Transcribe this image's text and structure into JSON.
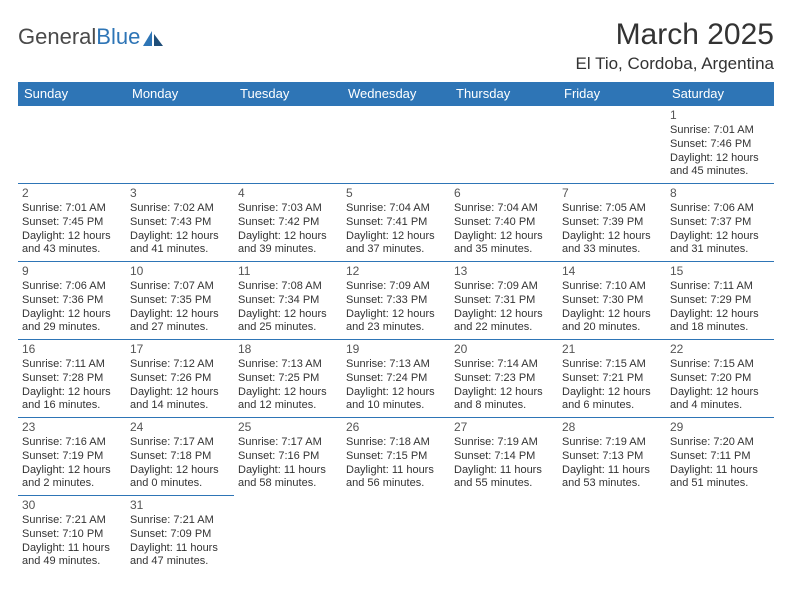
{
  "brand": {
    "part1": "General",
    "part2": "Blue"
  },
  "title": "March 2025",
  "location": "El Tio, Cordoba, Argentina",
  "colors": {
    "header_bg": "#2e75b6",
    "header_text": "#ffffff",
    "cell_border": "#2e75b6",
    "body_text": "#333333"
  },
  "day_headers": [
    "Sunday",
    "Monday",
    "Tuesday",
    "Wednesday",
    "Thursday",
    "Friday",
    "Saturday"
  ],
  "weeks": [
    [
      null,
      null,
      null,
      null,
      null,
      null,
      {
        "n": "1",
        "sr": "Sunrise: 7:01 AM",
        "ss": "Sunset: 7:46 PM",
        "d1": "Daylight: 12 hours",
        "d2": "and 45 minutes."
      }
    ],
    [
      {
        "n": "2",
        "sr": "Sunrise: 7:01 AM",
        "ss": "Sunset: 7:45 PM",
        "d1": "Daylight: 12 hours",
        "d2": "and 43 minutes."
      },
      {
        "n": "3",
        "sr": "Sunrise: 7:02 AM",
        "ss": "Sunset: 7:43 PM",
        "d1": "Daylight: 12 hours",
        "d2": "and 41 minutes."
      },
      {
        "n": "4",
        "sr": "Sunrise: 7:03 AM",
        "ss": "Sunset: 7:42 PM",
        "d1": "Daylight: 12 hours",
        "d2": "and 39 minutes."
      },
      {
        "n": "5",
        "sr": "Sunrise: 7:04 AM",
        "ss": "Sunset: 7:41 PM",
        "d1": "Daylight: 12 hours",
        "d2": "and 37 minutes."
      },
      {
        "n": "6",
        "sr": "Sunrise: 7:04 AM",
        "ss": "Sunset: 7:40 PM",
        "d1": "Daylight: 12 hours",
        "d2": "and 35 minutes."
      },
      {
        "n": "7",
        "sr": "Sunrise: 7:05 AM",
        "ss": "Sunset: 7:39 PM",
        "d1": "Daylight: 12 hours",
        "d2": "and 33 minutes."
      },
      {
        "n": "8",
        "sr": "Sunrise: 7:06 AM",
        "ss": "Sunset: 7:37 PM",
        "d1": "Daylight: 12 hours",
        "d2": "and 31 minutes."
      }
    ],
    [
      {
        "n": "9",
        "sr": "Sunrise: 7:06 AM",
        "ss": "Sunset: 7:36 PM",
        "d1": "Daylight: 12 hours",
        "d2": "and 29 minutes."
      },
      {
        "n": "10",
        "sr": "Sunrise: 7:07 AM",
        "ss": "Sunset: 7:35 PM",
        "d1": "Daylight: 12 hours",
        "d2": "and 27 minutes."
      },
      {
        "n": "11",
        "sr": "Sunrise: 7:08 AM",
        "ss": "Sunset: 7:34 PM",
        "d1": "Daylight: 12 hours",
        "d2": "and 25 minutes."
      },
      {
        "n": "12",
        "sr": "Sunrise: 7:09 AM",
        "ss": "Sunset: 7:33 PM",
        "d1": "Daylight: 12 hours",
        "d2": "and 23 minutes."
      },
      {
        "n": "13",
        "sr": "Sunrise: 7:09 AM",
        "ss": "Sunset: 7:31 PM",
        "d1": "Daylight: 12 hours",
        "d2": "and 22 minutes."
      },
      {
        "n": "14",
        "sr": "Sunrise: 7:10 AM",
        "ss": "Sunset: 7:30 PM",
        "d1": "Daylight: 12 hours",
        "d2": "and 20 minutes."
      },
      {
        "n": "15",
        "sr": "Sunrise: 7:11 AM",
        "ss": "Sunset: 7:29 PM",
        "d1": "Daylight: 12 hours",
        "d2": "and 18 minutes."
      }
    ],
    [
      {
        "n": "16",
        "sr": "Sunrise: 7:11 AM",
        "ss": "Sunset: 7:28 PM",
        "d1": "Daylight: 12 hours",
        "d2": "and 16 minutes."
      },
      {
        "n": "17",
        "sr": "Sunrise: 7:12 AM",
        "ss": "Sunset: 7:26 PM",
        "d1": "Daylight: 12 hours",
        "d2": "and 14 minutes."
      },
      {
        "n": "18",
        "sr": "Sunrise: 7:13 AM",
        "ss": "Sunset: 7:25 PM",
        "d1": "Daylight: 12 hours",
        "d2": "and 12 minutes."
      },
      {
        "n": "19",
        "sr": "Sunrise: 7:13 AM",
        "ss": "Sunset: 7:24 PM",
        "d1": "Daylight: 12 hours",
        "d2": "and 10 minutes."
      },
      {
        "n": "20",
        "sr": "Sunrise: 7:14 AM",
        "ss": "Sunset: 7:23 PM",
        "d1": "Daylight: 12 hours",
        "d2": "and 8 minutes."
      },
      {
        "n": "21",
        "sr": "Sunrise: 7:15 AM",
        "ss": "Sunset: 7:21 PM",
        "d1": "Daylight: 12 hours",
        "d2": "and 6 minutes."
      },
      {
        "n": "22",
        "sr": "Sunrise: 7:15 AM",
        "ss": "Sunset: 7:20 PM",
        "d1": "Daylight: 12 hours",
        "d2": "and 4 minutes."
      }
    ],
    [
      {
        "n": "23",
        "sr": "Sunrise: 7:16 AM",
        "ss": "Sunset: 7:19 PM",
        "d1": "Daylight: 12 hours",
        "d2": "and 2 minutes."
      },
      {
        "n": "24",
        "sr": "Sunrise: 7:17 AM",
        "ss": "Sunset: 7:18 PM",
        "d1": "Daylight: 12 hours",
        "d2": "and 0 minutes."
      },
      {
        "n": "25",
        "sr": "Sunrise: 7:17 AM",
        "ss": "Sunset: 7:16 PM",
        "d1": "Daylight: 11 hours",
        "d2": "and 58 minutes."
      },
      {
        "n": "26",
        "sr": "Sunrise: 7:18 AM",
        "ss": "Sunset: 7:15 PM",
        "d1": "Daylight: 11 hours",
        "d2": "and 56 minutes."
      },
      {
        "n": "27",
        "sr": "Sunrise: 7:19 AM",
        "ss": "Sunset: 7:14 PM",
        "d1": "Daylight: 11 hours",
        "d2": "and 55 minutes."
      },
      {
        "n": "28",
        "sr": "Sunrise: 7:19 AM",
        "ss": "Sunset: 7:13 PM",
        "d1": "Daylight: 11 hours",
        "d2": "and 53 minutes."
      },
      {
        "n": "29",
        "sr": "Sunrise: 7:20 AM",
        "ss": "Sunset: 7:11 PM",
        "d1": "Daylight: 11 hours",
        "d2": "and 51 minutes."
      }
    ],
    [
      {
        "n": "30",
        "sr": "Sunrise: 7:21 AM",
        "ss": "Sunset: 7:10 PM",
        "d1": "Daylight: 11 hours",
        "d2": "and 49 minutes."
      },
      {
        "n": "31",
        "sr": "Sunrise: 7:21 AM",
        "ss": "Sunset: 7:09 PM",
        "d1": "Daylight: 11 hours",
        "d2": "and 47 minutes."
      },
      null,
      null,
      null,
      null,
      null
    ]
  ]
}
